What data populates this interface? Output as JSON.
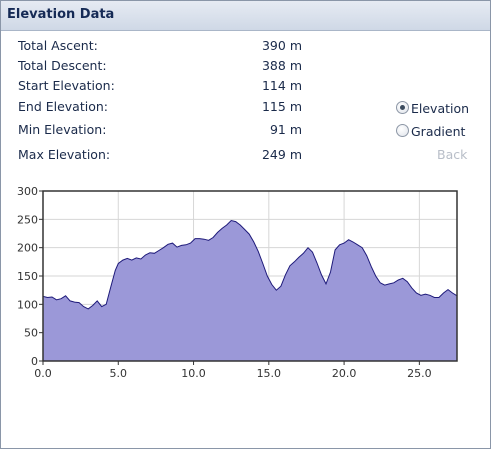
{
  "panel": {
    "title": "Elevation Data"
  },
  "stats": [
    {
      "label": "Total Ascent:",
      "value": "390 m"
    },
    {
      "label": "Total Descent:",
      "value": "388 m"
    },
    {
      "label": "Start Elevation:",
      "value": "114 m"
    },
    {
      "label": "End Elevation:",
      "value": "115 m"
    },
    {
      "label": "Min Elevation:",
      "value": "91 m"
    },
    {
      "label": "Max Elevation:",
      "value": "249 m"
    }
  ],
  "view_options": [
    {
      "label": "Elevation",
      "selected": true
    },
    {
      "label": "Gradient",
      "selected": false
    }
  ],
  "back_button": {
    "label": "Back",
    "enabled": false
  },
  "chart_data": {
    "type": "area",
    "title": "",
    "xlabel": "",
    "ylabel": "",
    "xlim": [
      0,
      27.5
    ],
    "ylim": [
      0,
      300
    ],
    "x_ticks": [
      "0.0",
      "5.0",
      "10.0",
      "15.0",
      "20.0",
      "25.0"
    ],
    "y_ticks": [
      "0",
      "50",
      "100",
      "150",
      "200",
      "250",
      "300"
    ],
    "grid": true,
    "fill_color": "#9b98d8",
    "line_color": "#1e1a7a",
    "series": [
      {
        "x": [
          0.0,
          0.3,
          0.6,
          0.9,
          1.2,
          1.5,
          1.8,
          2.1,
          2.4,
          2.7,
          3.0,
          3.3,
          3.6,
          3.9,
          4.2,
          4.5,
          4.8,
          5.0,
          5.3,
          5.6,
          5.9,
          6.2,
          6.5,
          6.8,
          7.1,
          7.4,
          7.7,
          8.0,
          8.3,
          8.6,
          8.9,
          9.2,
          9.5,
          9.8,
          10.1,
          10.4,
          10.7,
          11.0,
          11.3,
          11.6,
          11.9,
          12.2,
          12.5,
          12.8,
          13.1,
          13.4,
          13.7,
          14.0,
          14.3,
          14.6,
          14.9,
          15.2,
          15.5,
          15.8,
          16.1,
          16.4,
          16.7,
          17.0,
          17.3,
          17.6,
          17.9,
          18.2,
          18.5,
          18.8,
          19.1,
          19.4,
          19.7,
          20.0,
          20.3,
          20.6,
          20.9,
          21.2,
          21.5,
          21.8,
          22.1,
          22.4,
          22.7,
          23.0,
          23.3,
          23.6,
          23.9,
          24.2,
          24.5,
          24.8,
          25.1,
          25.4,
          25.7,
          26.0,
          26.3,
          26.6,
          26.9,
          27.2,
          27.5
        ],
        "y": [
          114,
          112,
          113,
          108,
          110,
          115,
          106,
          104,
          103,
          96,
          92,
          98,
          106,
          96,
          100,
          130,
          160,
          172,
          178,
          181,
          178,
          182,
          180,
          187,
          191,
          190,
          195,
          200,
          206,
          208,
          201,
          204,
          205,
          208,
          216,
          216,
          215,
          213,
          218,
          227,
          234,
          240,
          248,
          246,
          240,
          232,
          224,
          210,
          193,
          172,
          150,
          135,
          125,
          132,
          152,
          168,
          175,
          183,
          190,
          200,
          192,
          173,
          152,
          136,
          157,
          196,
          205,
          208,
          214,
          210,
          205,
          200,
          186,
          167,
          150,
          138,
          134,
          136,
          138,
          143,
          146,
          140,
          129,
          120,
          116,
          118,
          116,
          112,
          112,
          120,
          126,
          120,
          115
        ]
      }
    ]
  }
}
